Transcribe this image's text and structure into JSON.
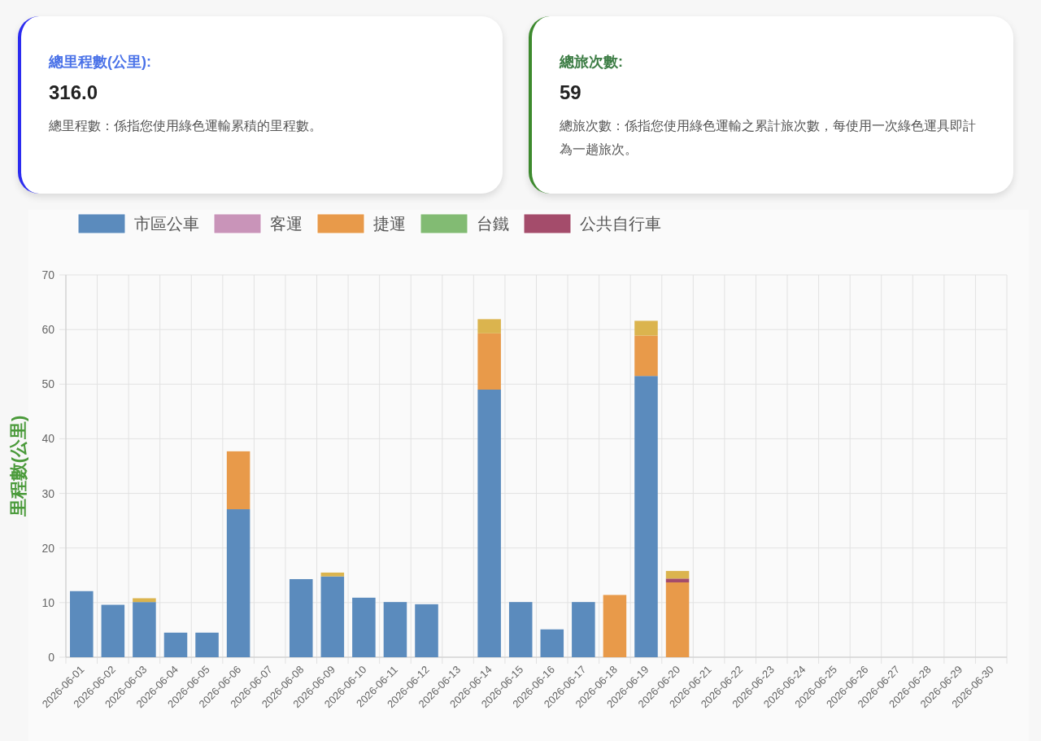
{
  "chart_data": [
    {
      "type": "other",
      "title": "總里程數(公里):",
      "subtitle": "316.0",
      "annotations": [
        "總里程數：係指您使用綠色運輸累積的里程數。"
      ]
    },
    {
      "type": "other",
      "title": "總旅次數:",
      "subtitle": "59",
      "annotations": [
        "總旅次數：係指您使用綠色運輸之累計旅次數，每使用一次綠色運具即計為一趟旅次。"
      ]
    },
    {
      "type": "bar",
      "stacked": true,
      "ylabel": "里程數(公里)",
      "legend": "top",
      "grid": true,
      "ylim": [
        0,
        70
      ],
      "yticks": [
        0,
        10,
        20,
        30,
        40,
        50,
        60,
        70
      ],
      "categories": [
        "2026-06-01",
        "2026-06-02",
        "2026-06-03",
        "2026-06-04",
        "2026-06-05",
        "2026-06-06",
        "2026-06-07",
        "2026-06-08",
        "2026-06-09",
        "2026-06-10",
        "2026-06-11",
        "2026-06-12",
        "2026-06-13",
        "2026-06-14",
        "2026-06-15",
        "2026-06-16",
        "2026-06-17",
        "2026-06-18",
        "2026-06-19",
        "2026-06-20",
        "2026-06-21",
        "2026-06-22",
        "2026-06-23",
        "2026-06-24",
        "2026-06-25",
        "2026-06-26",
        "2026-06-27",
        "2026-06-28",
        "2026-06-29",
        "2026-06-30"
      ],
      "series": [
        {
          "name": "市區公車",
          "color": "#5b8bbd",
          "values": [
            12.1,
            9.6,
            10.1,
            4.5,
            4.5,
            27.1,
            null,
            14.3,
            14.8,
            10.9,
            10.1,
            9.7,
            null,
            49.0,
            10.1,
            5.1,
            10.1,
            null,
            51.5,
            null,
            null,
            null,
            null,
            null,
            null,
            null,
            null,
            null,
            null,
            null
          ]
        },
        {
          "name": "客運",
          "color": "#c994b9",
          "values": [
            null,
            null,
            null,
            null,
            null,
            null,
            null,
            null,
            null,
            null,
            null,
            null,
            null,
            null,
            null,
            null,
            null,
            null,
            null,
            null,
            null,
            null,
            null,
            null,
            null,
            null,
            null,
            null,
            null,
            null
          ]
        },
        {
          "name": "捷運",
          "color": "#e89a4a",
          "values": [
            null,
            null,
            null,
            null,
            null,
            10.6,
            null,
            null,
            null,
            null,
            null,
            null,
            null,
            10.3,
            null,
            null,
            null,
            11.4,
            7.4,
            13.7,
            null,
            null,
            null,
            null,
            null,
            null,
            null,
            null,
            null,
            null
          ]
        },
        {
          "name": "台鐵",
          "color": "#82bb73",
          "values": [
            null,
            null,
            null,
            null,
            null,
            null,
            null,
            null,
            null,
            null,
            null,
            null,
            null,
            null,
            null,
            null,
            null,
            null,
            null,
            null,
            null,
            null,
            null,
            null,
            null,
            null,
            null,
            null,
            null,
            null
          ]
        },
        {
          "name": "公共自行車",
          "color": "#a44c6b",
          "values": [
            null,
            null,
            null,
            null,
            null,
            null,
            null,
            null,
            null,
            null,
            null,
            null,
            null,
            null,
            null,
            null,
            null,
            null,
            null,
            0.7,
            null,
            null,
            null,
            null,
            null,
            null,
            null,
            null,
            null,
            null
          ]
        },
        {
          "color": "#dbb44e",
          "values": [
            null,
            null,
            0.7,
            null,
            null,
            null,
            null,
            null,
            0.7,
            null,
            null,
            null,
            null,
            2.6,
            null,
            null,
            null,
            null,
            2.7,
            1.4,
            null,
            null,
            null,
            null,
            null,
            null,
            null,
            null,
            null,
            null
          ]
        }
      ]
    }
  ]
}
